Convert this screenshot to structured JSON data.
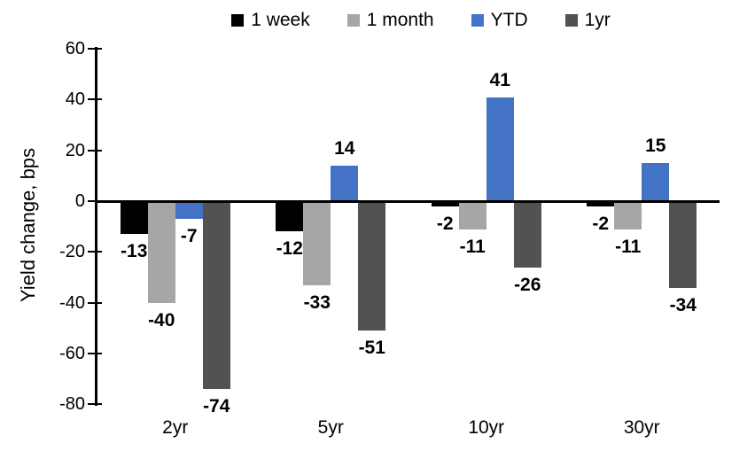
{
  "chart_data": {
    "type": "bar",
    "title": "",
    "ylabel": "Yield change, bps",
    "xlabel": "",
    "categories": [
      "2yr",
      "5yr",
      "10yr",
      "30yr"
    ],
    "series": [
      {
        "name": "1 week",
        "color": "#000000",
        "values": [
          -13,
          -12,
          -2,
          -2
        ]
      },
      {
        "name": "1 month",
        "color": "#A6A6A6",
        "values": [
          -40,
          -33,
          -11,
          -11
        ]
      },
      {
        "name": "YTD",
        "color": "#4472C4",
        "values": [
          -7,
          14,
          41,
          15
        ]
      },
      {
        "name": "1yr",
        "color": "#525252",
        "values": [
          -74,
          -51,
          -26,
          -34
        ]
      }
    ],
    "yticks": [
      60,
      40,
      20,
      0,
      -20,
      -40,
      -60,
      -80
    ],
    "ylim": [
      -80,
      60
    ],
    "grid": false,
    "legend_position": "top",
    "data_labels": true
  }
}
